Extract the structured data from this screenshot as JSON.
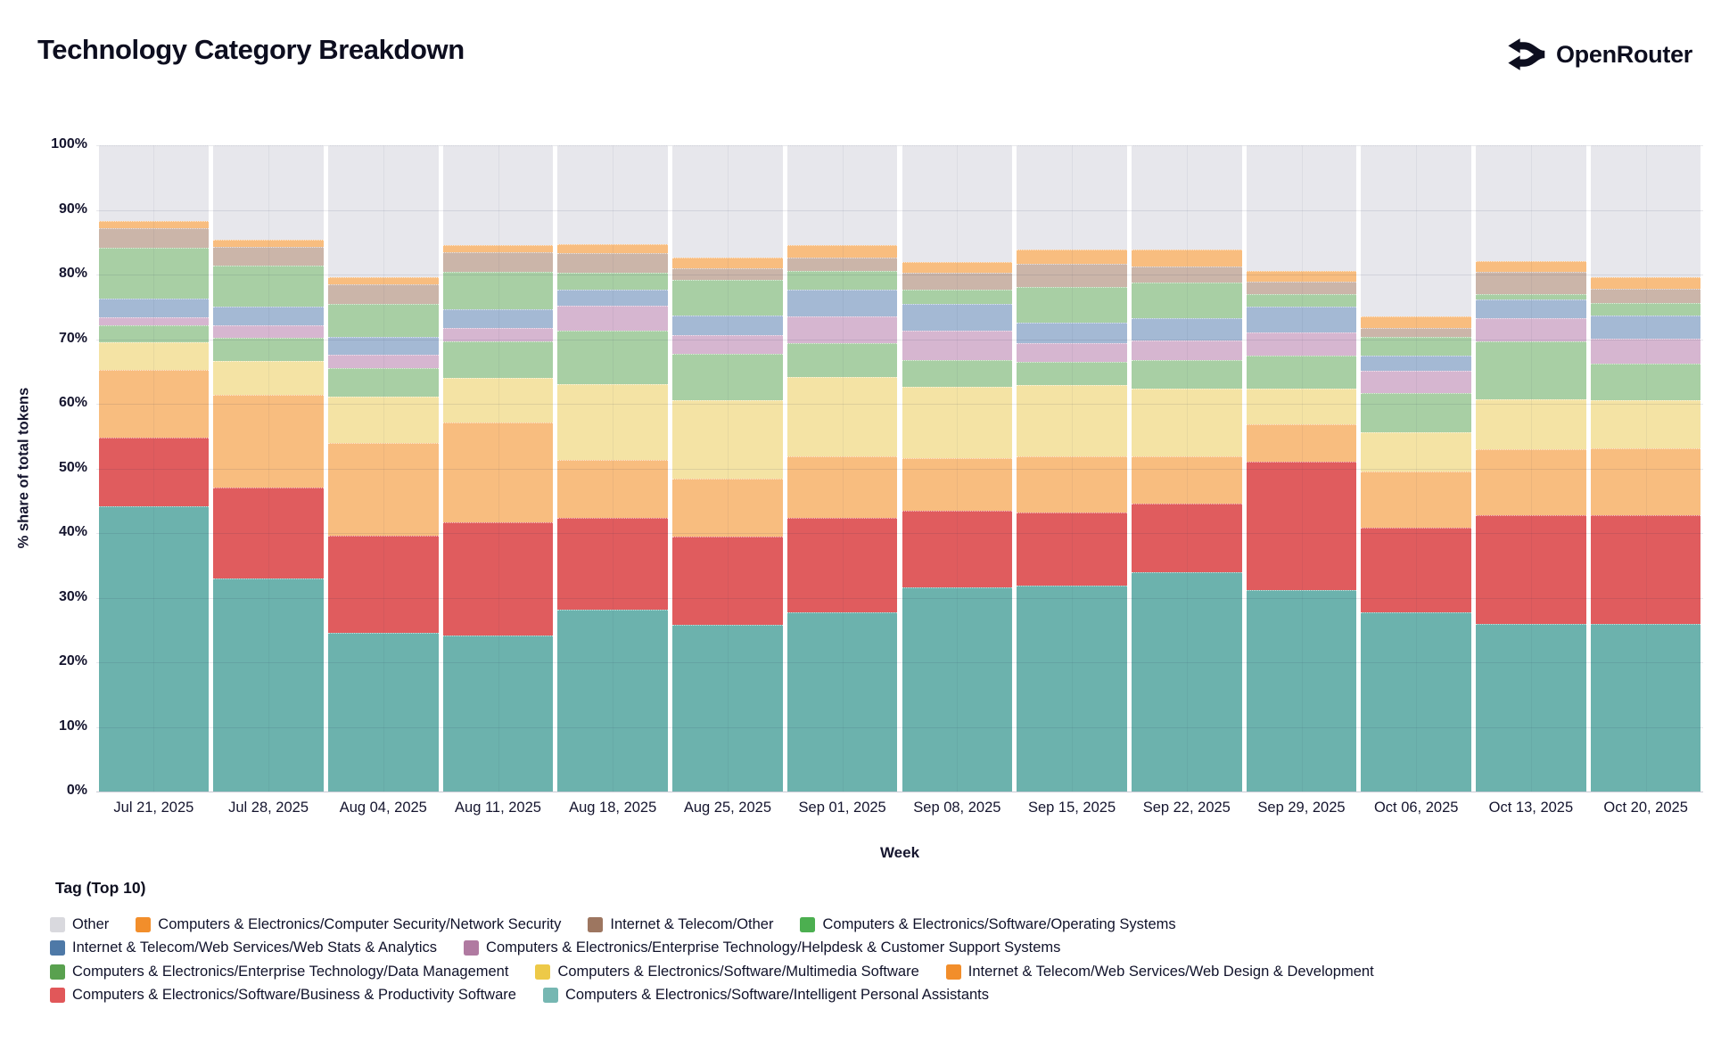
{
  "header": {
    "title": "Technology Category Breakdown",
    "brand": "OpenRouter"
  },
  "chart_data": {
    "type": "bar",
    "stacked": true,
    "title": "Technology Category Breakdown",
    "xlabel": "Week",
    "ylabel": "% share of total tokens",
    "ylim": [
      0,
      100
    ],
    "grid": true,
    "legend_position": "bottom",
    "yticks": [
      "0%",
      "10%",
      "20%",
      "30%",
      "40%",
      "50%",
      "60%",
      "70%",
      "80%",
      "90%",
      "100%"
    ],
    "categories": [
      "Jul 21, 2025",
      "Jul 28, 2025",
      "Aug 04, 2025",
      "Aug 11, 2025",
      "Aug 18, 2025",
      "Aug 25, 2025",
      "Sep 01, 2025",
      "Sep 08, 2025",
      "Sep 15, 2025",
      "Sep 22, 2025",
      "Sep 29, 2025",
      "Oct 06, 2025",
      "Oct 13, 2025",
      "Oct 20, 2025"
    ],
    "series": [
      {
        "name": "Computers & Electronics/Software/Intelligent Personal Assistants",
        "color": "#76B7B2",
        "fill": "#6CB2AD",
        "pattern": "none",
        "values": [
          44.2,
          32.9,
          24.6,
          24.1,
          28.1,
          25.8,
          27.7,
          31.6,
          31.9,
          34.0,
          31.2,
          27.7,
          26.0,
          26.0
        ]
      },
      {
        "name": "Computers & Electronics/Software/Business & Productivity Software",
        "color": "#E15759",
        "fill": "#E05C5E",
        "pattern": "none",
        "values": [
          10.5,
          14.1,
          15.0,
          17.6,
          14.2,
          13.6,
          14.6,
          11.9,
          11.3,
          10.5,
          19.9,
          13.1,
          16.7,
          16.8
        ]
      },
      {
        "name": "Internet & Telecom/Web Services/Web Design & Development",
        "color": "#F28E2B",
        "fill": "#F8BD7F",
        "pattern": "none",
        "values": [
          10.5,
          14.4,
          14.3,
          15.4,
          9.0,
          9.0,
          9.6,
          8.1,
          8.7,
          7.4,
          5.8,
          8.7,
          10.3,
          10.3
        ]
      },
      {
        "name": "Computers & Electronics/Software/Multimedia Software",
        "color": "#EDC948",
        "fill": "#F4E3A4",
        "pattern": "none",
        "values": [
          4.3,
          5.2,
          7.2,
          6.9,
          11.8,
          12.2,
          12.3,
          11.0,
          11.0,
          10.4,
          5.5,
          6.1,
          7.7,
          7.4
        ]
      },
      {
        "name": "Computers & Electronics/Enterprise Technology/Data Management",
        "color": "#59A14F",
        "fill": "#A8CFA4",
        "pattern": "none",
        "values": [
          2.6,
          3.6,
          4.4,
          5.7,
          8.2,
          7.1,
          5.2,
          4.2,
          3.6,
          4.5,
          5.1,
          6.1,
          8.9,
          5.7
        ]
      },
      {
        "name": "Computers & Electronics/Enterprise Technology/Helpdesk & Customer Support Systems",
        "color": "#B07AA1",
        "fill": "#D6B6D0",
        "pattern": "dots",
        "values": [
          1.3,
          2.0,
          2.1,
          2.1,
          3.9,
          2.9,
          4.1,
          4.5,
          2.9,
          3.0,
          3.6,
          3.4,
          3.7,
          3.9
        ]
      },
      {
        "name": "Internet & Telecom/Web Services/Web Stats & Analytics",
        "color": "#4E79A7",
        "fill": "#A4B9D4",
        "pattern": "none",
        "values": [
          2.9,
          2.8,
          2.8,
          2.8,
          2.5,
          3.1,
          4.2,
          4.2,
          3.2,
          3.5,
          3.9,
          2.4,
          2.8,
          3.5
        ]
      },
      {
        "name": "Computers & Electronics/Software/Operating Systems",
        "color": "#4CAF50",
        "fill": "#A8CFA4",
        "pattern": "none",
        "values": [
          7.9,
          6.4,
          5.0,
          5.8,
          2.6,
          5.5,
          2.9,
          2.2,
          5.5,
          5.5,
          2.0,
          2.8,
          0.9,
          2.0
        ]
      },
      {
        "name": "Internet & Telecom/Other",
        "color": "#9D7660",
        "fill": "#CBB5A9",
        "pattern": "dots",
        "values": [
          3.0,
          2.9,
          3.1,
          3.0,
          3.0,
          1.8,
          2.0,
          2.6,
          3.5,
          2.5,
          1.9,
          1.5,
          3.4,
          2.2
        ]
      },
      {
        "name": "Computers & Electronics/Computer Security/Network Security",
        "color": "#F28E2B",
        "fill": "#F8BD7F",
        "pattern": "none",
        "values": [
          1.1,
          1.1,
          1.1,
          1.1,
          1.4,
          1.6,
          1.9,
          1.6,
          2.3,
          2.5,
          1.7,
          1.7,
          1.7,
          1.8
        ]
      },
      {
        "name": "Other",
        "color": "#D9D9DE",
        "fill": "#E7E7EC",
        "pattern": "none",
        "values": [
          11.7,
          14.6,
          20.4,
          15.5,
          15.3,
          17.4,
          15.5,
          18.1,
          16.1,
          16.2,
          19.4,
          26.5,
          17.9,
          20.4
        ]
      }
    ],
    "legend": {
      "title": "Tag (Top 10)",
      "rows": [
        [
          10,
          9,
          8,
          7
        ],
        [
          6,
          5
        ],
        [
          4,
          3,
          2
        ],
        [
          1,
          0
        ]
      ],
      "legend_pattern_series": [
        8
      ]
    }
  }
}
